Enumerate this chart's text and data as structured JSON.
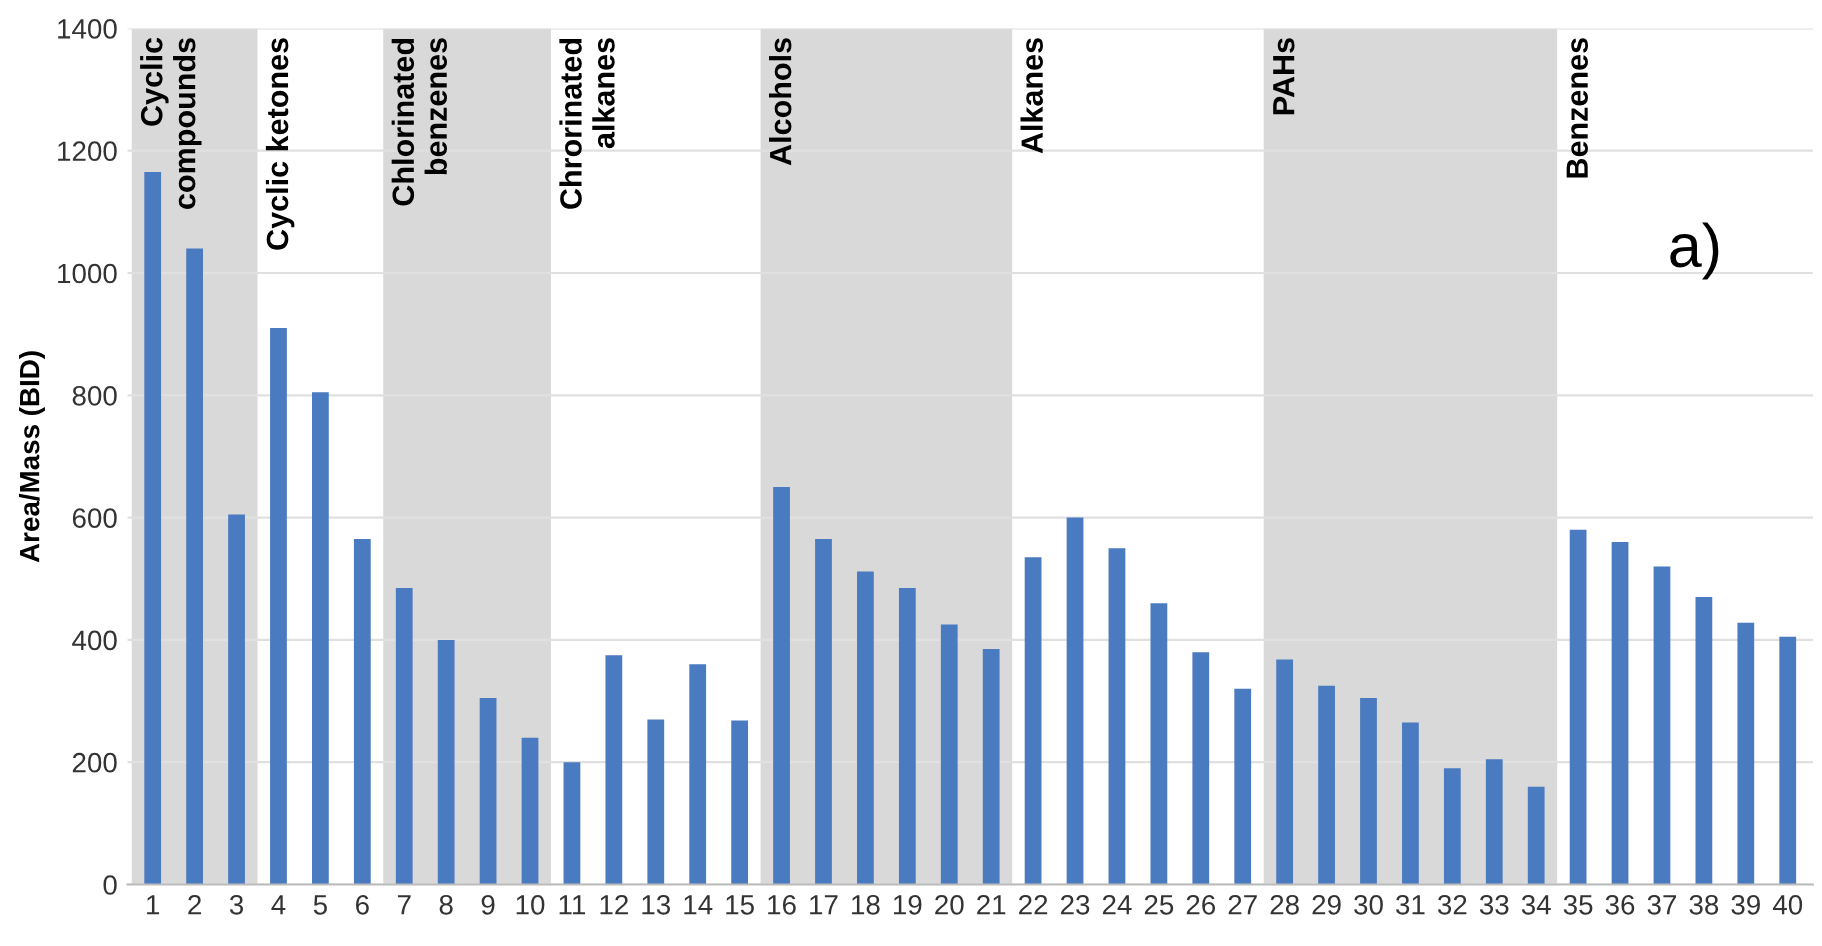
{
  "chart_data": {
    "type": "bar",
    "ylabel": "Area/Mass (BID)",
    "categories": [
      "1",
      "2",
      "3",
      "4",
      "5",
      "6",
      "7",
      "8",
      "9",
      "10",
      "11",
      "12",
      "13",
      "14",
      "15",
      "16",
      "17",
      "18",
      "19",
      "20",
      "21",
      "22",
      "23",
      "24",
      "25",
      "26",
      "27",
      "28",
      "29",
      "30",
      "31",
      "32",
      "33",
      "34",
      "35",
      "36",
      "37",
      "38",
      "39",
      "40"
    ],
    "values": [
      1165,
      1040,
      605,
      910,
      805,
      565,
      485,
      400,
      305,
      240,
      200,
      375,
      270,
      360,
      268,
      650,
      565,
      512,
      485,
      425,
      385,
      535,
      600,
      550,
      460,
      380,
      320,
      368,
      325,
      305,
      265,
      190,
      205,
      160,
      580,
      560,
      520,
      470,
      428,
      405
    ],
    "color": "#4a7abf",
    "ylim": [
      0,
      1400
    ],
    "yticks": [
      0,
      200,
      400,
      600,
      800,
      1000,
      1200,
      1400
    ],
    "grid": "y",
    "bands": [
      {
        "axis": "x",
        "from": "1",
        "to": "3",
        "label": "Cyclic\ncompounds",
        "color": "#d9d9d9"
      },
      {
        "axis": "x",
        "from": "7",
        "to": "10",
        "label": "Chlorinated\nbenzenes",
        "color": "#d9d9d9"
      },
      {
        "axis": "x",
        "from": "16",
        "to": "21",
        "label": "Alcohols",
        "color": "#d9d9d9"
      },
      {
        "axis": "x",
        "from": "28",
        "to": "34",
        "label": "PAHs",
        "color": "#d9d9d9"
      }
    ],
    "annotations": [
      "Cyclic ketones",
      "Chrorinated\nalkanes",
      "Alkanes",
      "Benzenes",
      "a)"
    ]
  }
}
